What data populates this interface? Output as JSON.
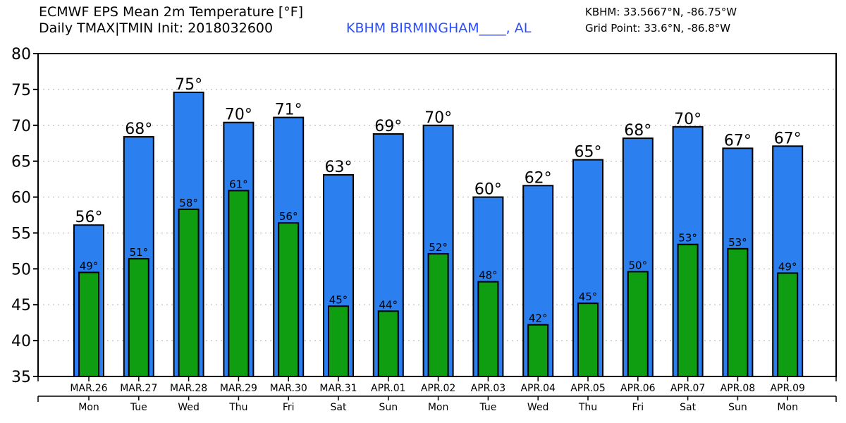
{
  "header": {
    "title": "ECMWF EPS Mean 2m Temperature [°F]",
    "subtitle": "Daily TMAX|TMIN Init: 2018032600",
    "location": "KBHM BIRMINGHAM____, AL",
    "station_coords": "KBHM: 33.5667°N, -86.75°W",
    "grid_coords": "Grid Point: 33.6°N, -86.8°W"
  },
  "chart_data": {
    "type": "bar",
    "title": "ECMWF EPS Mean 2m Temperature [°F]",
    "ylim": [
      35,
      80
    ],
    "yticks": [
      35,
      40,
      45,
      50,
      55,
      60,
      65,
      70,
      75,
      80
    ],
    "grid": true,
    "categories": [
      "MAR.26",
      "MAR.27",
      "MAR.28",
      "MAR.29",
      "MAR.30",
      "MAR.31",
      "APR.01",
      "APR.02",
      "APR.03",
      "APR.04",
      "APR.05",
      "APR.06",
      "APR.07",
      "APR.08",
      "APR.09"
    ],
    "weekdays": [
      "Mon",
      "Tue",
      "Wed",
      "Thu",
      "Fri",
      "Sat",
      "Sun",
      "Mon",
      "Tue",
      "Wed",
      "Thu",
      "Fri",
      "Sat",
      "Sun",
      "Mon"
    ],
    "series": [
      {
        "name": "TMAX",
        "color": "#2b7fee",
        "values": [
          56.1,
          68.4,
          74.6,
          70.4,
          71.1,
          63.1,
          68.8,
          70.0,
          60.0,
          61.6,
          65.2,
          68.2,
          69.8,
          66.8,
          67.1
        ],
        "labels": [
          "56°",
          "68°",
          "75°",
          "70°",
          "71°",
          "63°",
          "69°",
          "70°",
          "60°",
          "62°",
          "65°",
          "68°",
          "70°",
          "67°",
          "67°"
        ]
      },
      {
        "name": "TMIN",
        "color": "#0f9d12",
        "values": [
          49.5,
          51.4,
          58.3,
          60.9,
          56.4,
          44.8,
          44.1,
          52.1,
          48.2,
          42.2,
          45.2,
          49.6,
          53.4,
          52.8,
          49.4
        ],
        "labels": [
          "49°",
          "51°",
          "58°",
          "61°",
          "56°",
          "45°",
          "44°",
          "52°",
          "48°",
          "42°",
          "45°",
          "50°",
          "53°",
          "53°",
          "49°"
        ]
      }
    ]
  }
}
